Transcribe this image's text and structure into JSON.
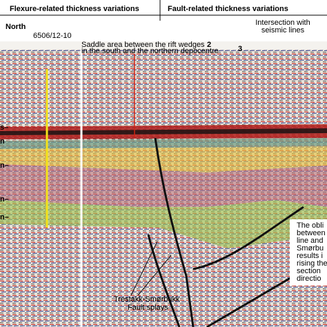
{
  "header": {
    "left": "Flexure-related thickness variations",
    "right": "Fault-related thickness variations"
  },
  "direction": "North",
  "well": "6506/12-10",
  "saddle": {
    "lines": [
      "Saddle area between the rift wedges",
      "in the south and the northern depocentre"
    ]
  },
  "intersection": {
    "lines": [
      "Intersection with",
      "seismic lines"
    ],
    "markers": [
      "2",
      "3"
    ]
  },
  "annotation": {
    "lines": [
      "The obli",
      "between",
      "line and",
      "Smørbu",
      "results i",
      "rising the",
      "section",
      "directio"
    ]
  },
  "fault_label": {
    "lines": [
      "Trestakk-Smørbukk",
      "Fault splays"
    ]
  },
  "left_labels": [
    "s–",
    "n",
    "n–",
    "n–",
    "n–"
  ]
}
